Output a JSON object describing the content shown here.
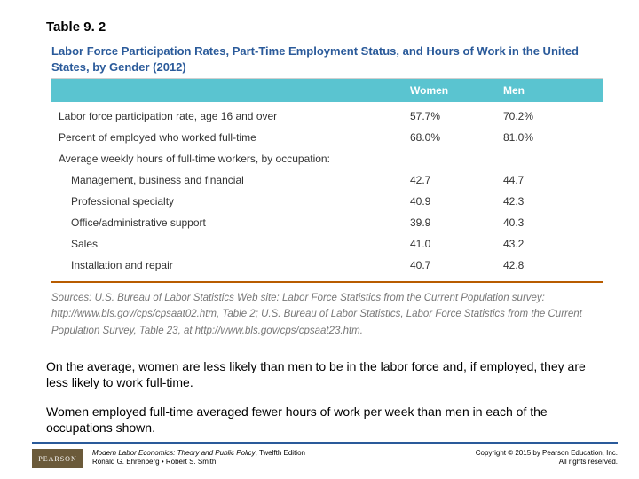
{
  "table_number": "Table 9. 2",
  "table_title": "Labor Force Participation Rates, Part-Time Employment Status, and Hours of Work in the United States, by Gender (2012)",
  "columns": {
    "col1": "Women",
    "col2": "Men"
  },
  "rows": [
    {
      "label": "Labor force participation rate, age 16 and over",
      "women": "57.7%",
      "men": "70.2%",
      "indent": false
    },
    {
      "label": "Percent of employed who worked full-time",
      "women": "68.0%",
      "men": "81.0%",
      "indent": false
    },
    {
      "label": "Average weekly hours of full-time workers, by occupation:",
      "women": "",
      "men": "",
      "indent": false
    },
    {
      "label": "Management, business and financial",
      "women": "42.7",
      "men": "44.7",
      "indent": true
    },
    {
      "label": "Professional specialty",
      "women": "40.9",
      "men": "42.3",
      "indent": true
    },
    {
      "label": "Office/administrative support",
      "women": "39.9",
      "men": "40.3",
      "indent": true
    },
    {
      "label": "Sales",
      "women": "41.0",
      "men": "43.2",
      "indent": true
    },
    {
      "label": "Installation and repair",
      "women": "40.7",
      "men": "42.8",
      "indent": true
    }
  ],
  "sources_label": "Sources:",
  "sources_text": " U.S. Bureau of Labor Statistics Web site: Labor Force Statistics from the Current Population survey: http://www.bls.gov/cps/cpsaat02.htm, Table 2; U.S. Bureau of Labor Statistics, Labor Force Statistics from the Current Population Survey, Table 23, at http://www.bls.gov/cps/cpsaat23.htm.",
  "paragraph1": "On the average, women are less likely than men to be in the labor force and, if employed, they are less likely to work full-time.",
  "paragraph2": "Women employed full-time averaged fewer hours of work per week than men in each of the occupations shown.",
  "footer": {
    "logo": "PEARSON",
    "book_title": "Modern Labor Economics: Theory and Public Policy",
    "edition": ", Twelfth Edition",
    "authors": "Ronald G. Ehrenberg • Robert S. Smith",
    "copyright_line1": "Copyright © 2015 by Pearson Education, Inc.",
    "copyright_line2": "All rights reserved."
  },
  "colors": {
    "title_color": "#2a5a9a",
    "header_bg": "#5ac4d0",
    "rule_color": "#b85c00",
    "footer_rule": "#2a5a9a"
  }
}
